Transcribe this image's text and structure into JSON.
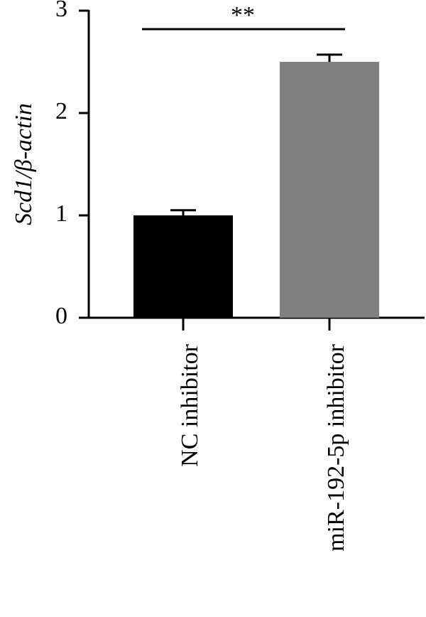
{
  "chart_data": {
    "type": "bar",
    "y_label": "Scd1/β-actin",
    "categories": [
      "NC inhibitor",
      "miR-192-5p inhibitor"
    ],
    "values": [
      1.0,
      2.5
    ],
    "errors": [
      0.05,
      0.07
    ],
    "colors": [
      "#000000",
      "#808080"
    ],
    "ylim": [
      0,
      3
    ],
    "yticks": [
      0,
      1,
      2,
      3
    ],
    "annotation": "**"
  }
}
